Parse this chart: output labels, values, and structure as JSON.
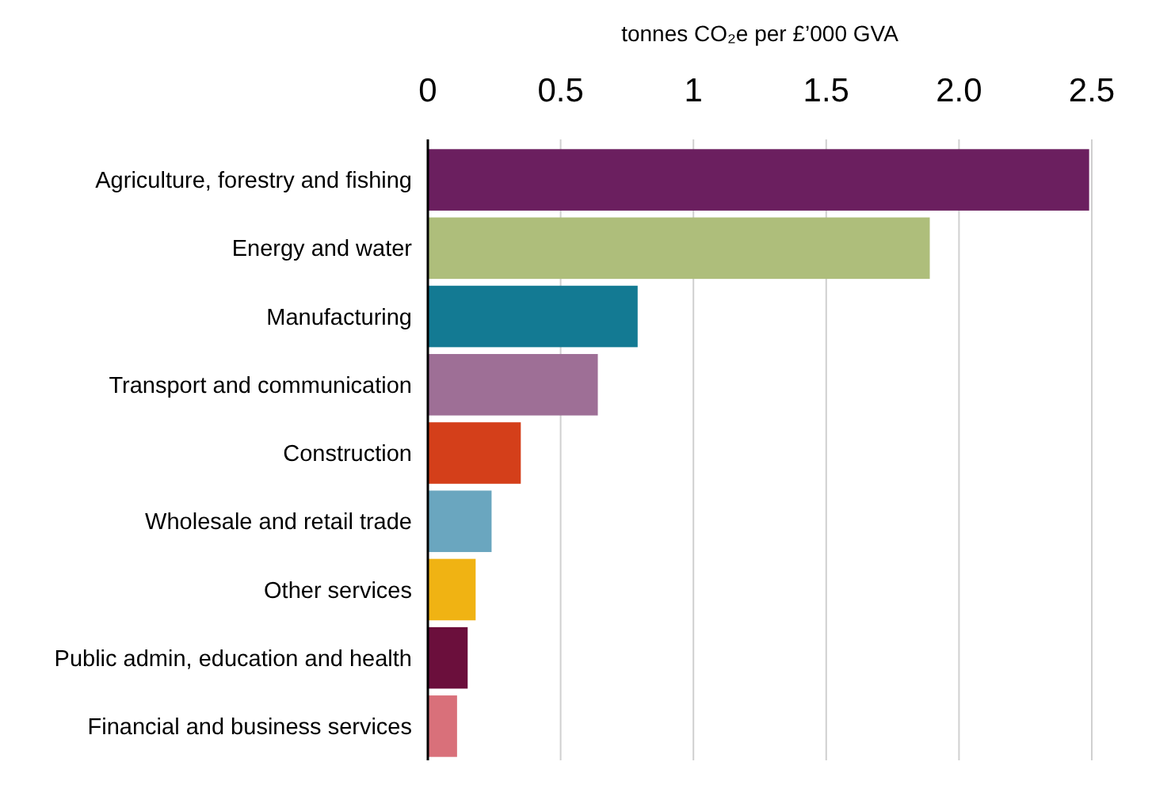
{
  "chart_data": {
    "type": "bar",
    "orientation": "horizontal",
    "xlabel": "tonnes CO₂e per £’000 GVA",
    "categories": [
      "Agriculture, forestry and fishing",
      "Energy and water",
      "Manufacturing",
      "Transport and communication",
      "Construction",
      "Wholesale and retail trade",
      "Other services",
      "Public admin, education and health",
      "Financial and business services"
    ],
    "values": [
      2.49,
      1.89,
      0.79,
      0.64,
      0.35,
      0.24,
      0.18,
      0.15,
      0.11
    ],
    "colors": [
      "#6b1f5f",
      "#aebe7b",
      "#137a93",
      "#9e6f96",
      "#d43f1a",
      "#6aa6bf",
      "#f0b313",
      "#6b0f3c",
      "#d9707a"
    ],
    "xlim": [
      0,
      2.5
    ],
    "xticks": [
      0,
      0.5,
      1,
      1.5,
      {
        "value": 2,
        "label": "2.0"
      },
      2.5
    ],
    "grid": "x"
  }
}
